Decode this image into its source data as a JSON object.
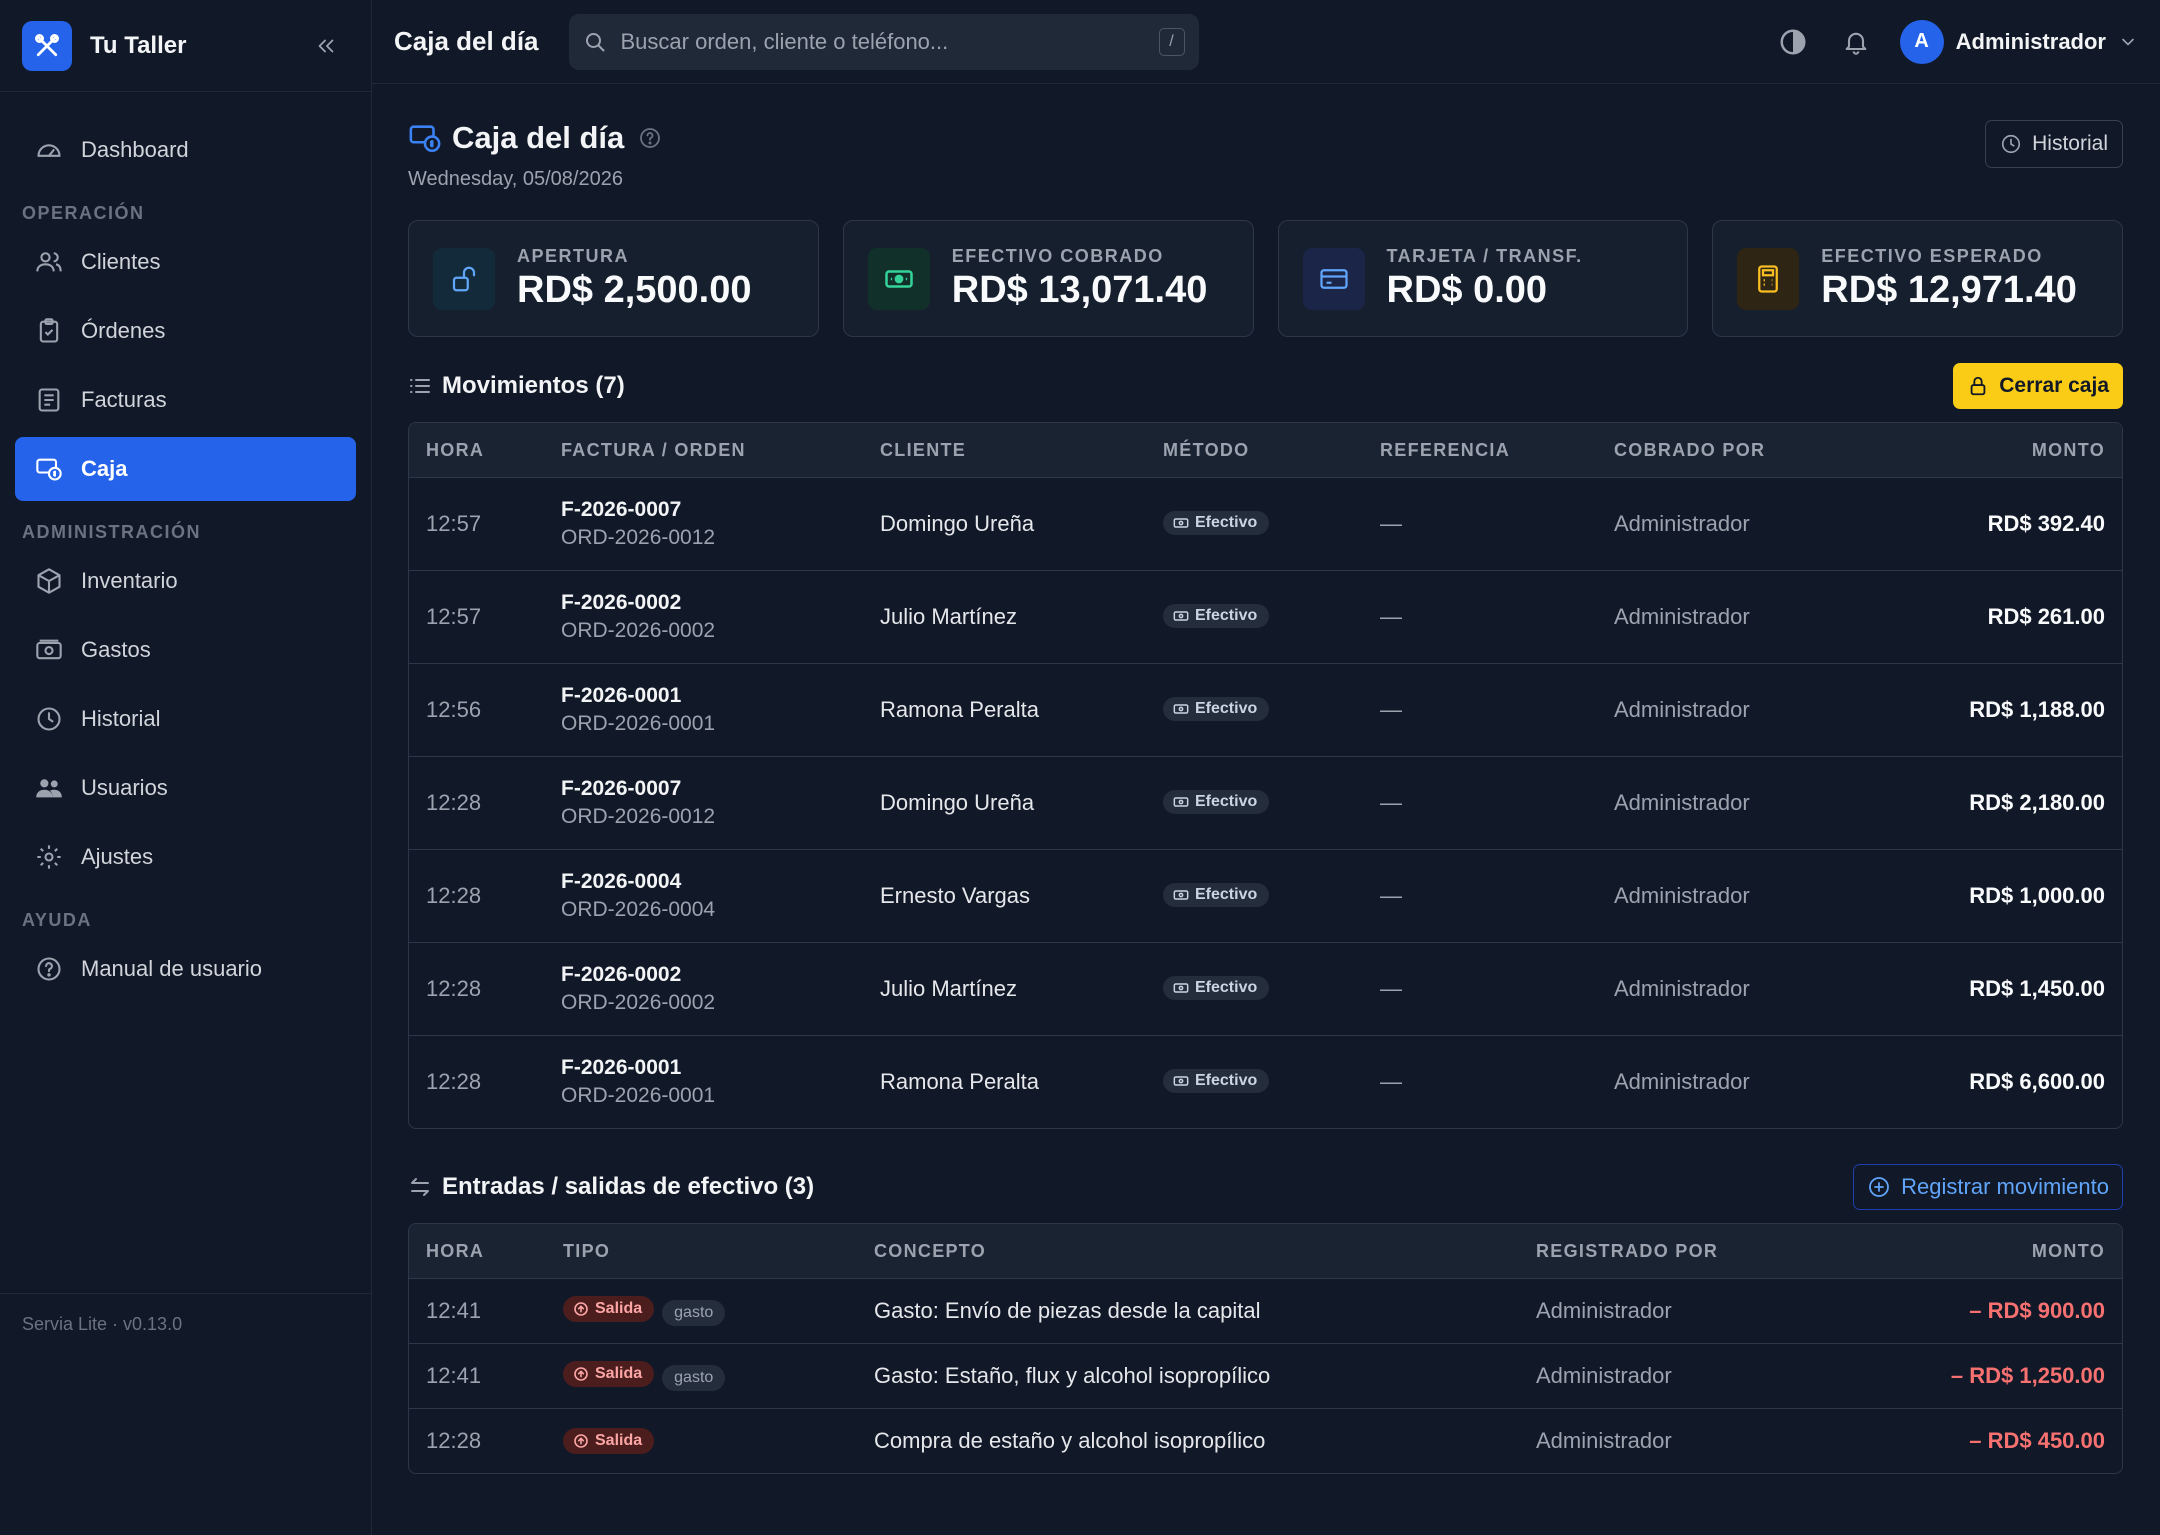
{
  "app": {
    "name": "Tu Taller",
    "version": "Servia Lite · v0.13.0"
  },
  "sidebar": {
    "dashboard": "Dashboard",
    "sections": {
      "operacion": "OPERACIÓN",
      "administracion": "ADMINISTRACIÓN",
      "ayuda": "AYUDA"
    },
    "items": {
      "clientes": "Clientes",
      "ordenes": "Órdenes",
      "facturas": "Facturas",
      "caja": "Caja",
      "inventario": "Inventario",
      "gastos": "Gastos",
      "historial": "Historial",
      "usuarios": "Usuarios",
      "ajustes": "Ajustes",
      "manual": "Manual de usuario"
    },
    "active": "caja"
  },
  "topbar": {
    "title": "Caja del día",
    "search_placeholder": "Buscar orden, cliente o teléfono...",
    "search_shortcut": "/",
    "user_initial": "A",
    "user_name": "Administrador"
  },
  "page": {
    "title": "Caja del día",
    "date": "Wednesday, 05/08/2026",
    "history_button": "Historial"
  },
  "stats": {
    "apertura": {
      "label": "APERTURA",
      "value": "RD$ 2,500.00"
    },
    "efectivo_cobrado": {
      "label": "EFECTIVO COBRADO",
      "value": "RD$ 13,071.40"
    },
    "tarjeta": {
      "label": "TARJETA / TRANSF.",
      "value": "RD$ 0.00"
    },
    "efectivo_esperado": {
      "label": "EFECTIVO ESPERADO",
      "value": "RD$ 12,971.40"
    }
  },
  "movements": {
    "title": "Movimientos (7)",
    "close_button": "Cerrar caja",
    "headers": {
      "hora": "HORA",
      "factura": "FACTURA / ORDEN",
      "cliente": "CLIENTE",
      "metodo": "MÉTODO",
      "referencia": "REFERENCIA",
      "cobrado": "COBRADO POR",
      "monto": "MONTO"
    },
    "rows": [
      {
        "hora": "12:57",
        "factura": "F-2026-0007",
        "orden": "ORD-2026-0012",
        "cliente": "Domingo Ureña",
        "metodo": "Efectivo",
        "referencia": "—",
        "cobrado": "Administrador",
        "monto": "RD$ 392.40"
      },
      {
        "hora": "12:57",
        "factura": "F-2026-0002",
        "orden": "ORD-2026-0002",
        "cliente": "Julio Martínez",
        "metodo": "Efectivo",
        "referencia": "—",
        "cobrado": "Administrador",
        "monto": "RD$ 261.00"
      },
      {
        "hora": "12:56",
        "factura": "F-2026-0001",
        "orden": "ORD-2026-0001",
        "cliente": "Ramona Peralta",
        "metodo": "Efectivo",
        "referencia": "—",
        "cobrado": "Administrador",
        "monto": "RD$ 1,188.00"
      },
      {
        "hora": "12:28",
        "factura": "F-2026-0007",
        "orden": "ORD-2026-0012",
        "cliente": "Domingo Ureña",
        "metodo": "Efectivo",
        "referencia": "—",
        "cobrado": "Administrador",
        "monto": "RD$ 2,180.00"
      },
      {
        "hora": "12:28",
        "factura": "F-2026-0004",
        "orden": "ORD-2026-0004",
        "cliente": "Ernesto Vargas",
        "metodo": "Efectivo",
        "referencia": "—",
        "cobrado": "Administrador",
        "monto": "RD$ 1,000.00"
      },
      {
        "hora": "12:28",
        "factura": "F-2026-0002",
        "orden": "ORD-2026-0002",
        "cliente": "Julio Martínez",
        "metodo": "Efectivo",
        "referencia": "—",
        "cobrado": "Administrador",
        "monto": "RD$ 1,450.00"
      },
      {
        "hora": "12:28",
        "factura": "F-2026-0001",
        "orden": "ORD-2026-0001",
        "cliente": "Ramona Peralta",
        "metodo": "Efectivo",
        "referencia": "—",
        "cobrado": "Administrador",
        "monto": "RD$ 6,600.00"
      }
    ]
  },
  "cash": {
    "title": "Entradas / salidas de efectivo (3)",
    "register_button": "Registrar movimiento",
    "headers": {
      "hora": "HORA",
      "tipo": "TIPO",
      "concepto": "CONCEPTO",
      "registrado": "REGISTRADO POR",
      "monto": "MONTO"
    },
    "rows": [
      {
        "hora": "12:41",
        "tipo": "Salida",
        "tag": "gasto",
        "concepto": "Gasto: Envío de piezas desde la capital",
        "registrado": "Administrador",
        "monto": "– RD$ 900.00"
      },
      {
        "hora": "12:41",
        "tipo": "Salida",
        "tag": "gasto",
        "concepto": "Gasto: Estaño, flux y alcohol isopropílico",
        "registrado": "Administrador",
        "monto": "– RD$ 1,250.00"
      },
      {
        "hora": "12:28",
        "tipo": "Salida",
        "tag": "",
        "concepto": "Compra de estaño y alcohol isopropílico",
        "registrado": "Administrador",
        "monto": "– RD$ 450.00"
      }
    ]
  }
}
